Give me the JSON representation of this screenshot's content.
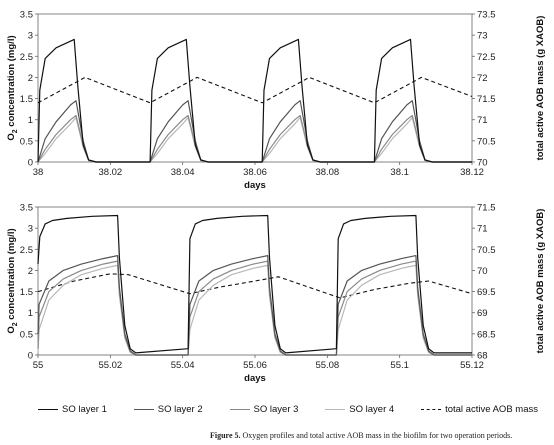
{
  "caption": {
    "label": "Figure 5.",
    "text": "Oxygen profiles and total active AOB mass in the biofilm for two operation periods."
  },
  "legend": [
    {
      "name": "SO layer 1",
      "color": "#111111",
      "dash": ""
    },
    {
      "name": "SO layer 2",
      "color": "#555555",
      "dash": ""
    },
    {
      "name": "SO layer 3",
      "color": "#8a8a8a",
      "dash": ""
    },
    {
      "name": "SO layer 4",
      "color": "#b8b8b8",
      "dash": ""
    },
    {
      "name": "total active AOB mass",
      "color": "#111111",
      "dash": "4,3"
    }
  ],
  "chart_data": [
    {
      "type": "line",
      "xlabel": "days",
      "ylabel": "O2 concentration (mg/l)",
      "y2label": "total active AOB mass (g XAOB)",
      "xlim": [
        38,
        38.12
      ],
      "ylim": [
        0,
        3.5
      ],
      "y2lim": [
        70,
        73.5
      ],
      "xticks": [
        "38",
        "38.02",
        "38.04",
        "38.06",
        "38.08",
        "38.1",
        "38.12"
      ],
      "yticks": [
        "0",
        "0.5",
        "1",
        "1.5",
        "2",
        "2.5",
        "3",
        "3.5"
      ],
      "y2ticks": [
        "70",
        "70.5",
        "71",
        "71.5",
        "72",
        "72.5",
        "73",
        "73.5"
      ],
      "grid": false,
      "series": [
        {
          "name": "SO layer 1",
          "axis": "left",
          "x": [
            38,
            38.0005,
            38.002,
            38.005,
            38.01,
            38.011,
            38.0125,
            38.014,
            38.016,
            38.031,
            38.0315,
            38.033,
            38.036,
            38.041,
            38.042,
            38.0435,
            38.045,
            38.047,
            38.062,
            38.0625,
            38.064,
            38.067,
            38.072,
            38.073,
            38.0745,
            38.076,
            38.078,
            38.093,
            38.0935,
            38.095,
            38.098,
            38.103,
            38.104,
            38.1055,
            38.107,
            38.109,
            38.12
          ],
          "y": [
            0.0,
            1.7,
            2.45,
            2.7,
            2.9,
            1.8,
            0.4,
            0.05,
            0.0,
            0.0,
            1.7,
            2.45,
            2.7,
            2.9,
            1.8,
            0.4,
            0.05,
            0.0,
            0.0,
            1.7,
            2.45,
            2.7,
            2.9,
            1.8,
            0.4,
            0.05,
            0.0,
            0.0,
            1.7,
            2.45,
            2.7,
            2.9,
            1.8,
            0.4,
            0.05,
            0.0,
            0.0
          ]
        },
        {
          "name": "SO layer 2",
          "axis": "left",
          "x": [
            38,
            38.002,
            38.005,
            38.009,
            38.0105,
            38.0125,
            38.014,
            38.016,
            38.031,
            38.033,
            38.036,
            38.04,
            38.0415,
            38.0435,
            38.045,
            38.047,
            38.062,
            38.064,
            38.067,
            38.071,
            38.0725,
            38.0745,
            38.076,
            38.078,
            38.093,
            38.095,
            38.098,
            38.102,
            38.1035,
            38.1055,
            38.107,
            38.109,
            38.12
          ],
          "y": [
            0.0,
            0.55,
            0.95,
            1.35,
            1.45,
            0.5,
            0.05,
            0.0,
            0.0,
            0.55,
            0.95,
            1.35,
            1.45,
            0.5,
            0.05,
            0.0,
            0.0,
            0.55,
            0.95,
            1.35,
            1.45,
            0.5,
            0.05,
            0.0,
            0.0,
            0.55,
            0.95,
            1.35,
            1.45,
            0.5,
            0.05,
            0.0,
            0.0
          ]
        },
        {
          "name": "SO layer 3",
          "axis": "left",
          "x": [
            38,
            38.002,
            38.005,
            38.009,
            38.0105,
            38.0125,
            38.014,
            38.016,
            38.031,
            38.033,
            38.036,
            38.04,
            38.0415,
            38.0435,
            38.045,
            38.047,
            38.062,
            38.064,
            38.067,
            38.071,
            38.0725,
            38.0745,
            38.076,
            38.078,
            38.093,
            38.095,
            38.098,
            38.102,
            38.1035,
            38.1055,
            38.107,
            38.109,
            38.12
          ],
          "y": [
            0.0,
            0.3,
            0.65,
            1.0,
            1.1,
            0.4,
            0.04,
            0.0,
            0.0,
            0.3,
            0.65,
            1.0,
            1.1,
            0.4,
            0.04,
            0.0,
            0.0,
            0.3,
            0.65,
            1.0,
            1.1,
            0.4,
            0.04,
            0.0,
            0.0,
            0.3,
            0.65,
            1.0,
            1.1,
            0.4,
            0.04,
            0.0,
            0.0
          ]
        },
        {
          "name": "SO layer 4",
          "axis": "left",
          "x": [
            38,
            38.002,
            38.005,
            38.009,
            38.0105,
            38.0125,
            38.014,
            38.016,
            38.031,
            38.033,
            38.036,
            38.04,
            38.0415,
            38.0435,
            38.045,
            38.047,
            38.062,
            38.064,
            38.067,
            38.071,
            38.0725,
            38.0745,
            38.076,
            38.078,
            38.093,
            38.095,
            38.098,
            38.102,
            38.1035,
            38.1055,
            38.107,
            38.109,
            38.12
          ],
          "y": [
            0.0,
            0.2,
            0.55,
            0.9,
            1.05,
            0.35,
            0.03,
            0.0,
            0.0,
            0.2,
            0.55,
            0.9,
            1.05,
            0.35,
            0.03,
            0.0,
            0.0,
            0.2,
            0.55,
            0.9,
            1.05,
            0.35,
            0.03,
            0.0,
            0.0,
            0.2,
            0.55,
            0.9,
            1.05,
            0.35,
            0.03,
            0.0,
            0.0
          ]
        },
        {
          "name": "total active AOB mass",
          "axis": "right",
          "x": [
            38,
            38.013,
            38.031,
            38.044,
            38.062,
            38.075,
            38.093,
            38.106,
            38.12
          ],
          "y": [
            71.4,
            72.0,
            71.4,
            72.0,
            71.4,
            72.0,
            71.4,
            72.0,
            71.55
          ]
        }
      ]
    },
    {
      "type": "line",
      "xlabel": "days",
      "ylabel": "O2 concentration (mg/l)",
      "y2label": "total active AOB mass (g XAOB)",
      "xlim": [
        55,
        55.12
      ],
      "ylim": [
        0,
        3.5
      ],
      "y2lim": [
        68,
        71.5
      ],
      "xticks": [
        "55",
        "55.02",
        "55.04",
        "55.06",
        "55.08",
        "55.1",
        "55.12"
      ],
      "yticks": [
        "0",
        "0.5",
        "1",
        "1.5",
        "2",
        "2.5",
        "3",
        "3.5"
      ],
      "y2ticks": [
        "68",
        "68.5",
        "69",
        "69.5",
        "70",
        "70.5",
        "71",
        "71.5"
      ],
      "grid": false,
      "series": [
        {
          "name": "SO layer 1",
          "axis": "left",
          "x": [
            55,
            55.0005,
            55.002,
            55.004,
            55.008,
            55.015,
            55.022,
            55.0225,
            55.024,
            55.0255,
            55.027,
            55.0415,
            55.042,
            55.0435,
            55.0455,
            55.0495,
            55.0565,
            55.0635,
            55.064,
            55.0655,
            55.067,
            55.0685,
            55.0825,
            55.083,
            55.0845,
            55.0865,
            55.0905,
            55.0975,
            55.1045,
            55.105,
            55.1065,
            55.108,
            55.1095,
            55.12
          ],
          "y": [
            2.15,
            2.8,
            3.1,
            3.18,
            3.23,
            3.28,
            3.3,
            2.3,
            0.7,
            0.15,
            0.05,
            0.15,
            2.75,
            3.1,
            3.18,
            3.23,
            3.28,
            3.3,
            2.3,
            0.7,
            0.15,
            0.05,
            0.15,
            2.75,
            3.1,
            3.18,
            3.23,
            3.28,
            3.3,
            2.3,
            0.7,
            0.15,
            0.05,
            0.05
          ]
        },
        {
          "name": "SO layer 2",
          "axis": "left",
          "x": [
            55,
            55.0003,
            55.003,
            55.007,
            55.012,
            55.018,
            55.022,
            55.0225,
            55.024,
            55.0255,
            55.027,
            55.0415,
            55.042,
            55.0445,
            55.0485,
            55.0535,
            55.0595,
            55.0635,
            55.064,
            55.0655,
            55.067,
            55.0685,
            55.0825,
            55.083,
            55.0855,
            55.0895,
            55.0945,
            55.1005,
            55.1045,
            55.105,
            55.1065,
            55.108,
            55.1095,
            55.12
          ],
          "y": [
            0.5,
            1.2,
            1.75,
            2.0,
            2.15,
            2.28,
            2.35,
            1.6,
            0.5,
            0.1,
            0.0,
            0.0,
            1.2,
            1.75,
            2.0,
            2.15,
            2.28,
            2.35,
            1.6,
            0.5,
            0.1,
            0.0,
            0.0,
            1.2,
            1.75,
            2.0,
            2.15,
            2.28,
            2.35,
            1.6,
            0.5,
            0.1,
            0.0,
            0.0
          ]
        },
        {
          "name": "SO layer 3",
          "axis": "left",
          "x": [
            55,
            55.0003,
            55.003,
            55.007,
            55.012,
            55.018,
            55.022,
            55.0225,
            55.024,
            55.0255,
            55.027,
            55.0415,
            55.042,
            55.0445,
            55.0485,
            55.0535,
            55.0595,
            55.0635,
            55.064,
            55.0655,
            55.067,
            55.0685,
            55.0825,
            55.083,
            55.0855,
            55.0895,
            55.0945,
            55.1005,
            55.1045,
            55.105,
            55.1065,
            55.108,
            55.1095,
            55.12
          ],
          "y": [
            0.15,
            0.9,
            1.5,
            1.8,
            2.0,
            2.15,
            2.22,
            1.5,
            0.45,
            0.08,
            0.0,
            0.0,
            0.9,
            1.5,
            1.8,
            2.0,
            2.15,
            2.22,
            1.5,
            0.45,
            0.08,
            0.0,
            0.0,
            0.9,
            1.5,
            1.8,
            2.0,
            2.15,
            2.22,
            1.5,
            0.45,
            0.08,
            0.0,
            0.0
          ]
        },
        {
          "name": "SO layer 4",
          "axis": "left",
          "x": [
            55,
            55.0003,
            55.003,
            55.007,
            55.012,
            55.018,
            55.022,
            55.0225,
            55.024,
            55.0255,
            55.027,
            55.0415,
            55.042,
            55.0445,
            55.0485,
            55.0535,
            55.0595,
            55.0635,
            55.064,
            55.0655,
            55.067,
            55.0685,
            55.0825,
            55.083,
            55.0855,
            55.0895,
            55.0945,
            55.1005,
            55.1045,
            55.105,
            55.1065,
            55.108,
            55.1095,
            55.12
          ],
          "y": [
            0.05,
            0.6,
            1.3,
            1.65,
            1.9,
            2.05,
            2.12,
            1.4,
            0.4,
            0.06,
            0.0,
            0.0,
            0.6,
            1.3,
            1.65,
            1.9,
            2.05,
            2.12,
            1.4,
            0.4,
            0.06,
            0.0,
            0.0,
            0.6,
            1.3,
            1.65,
            1.9,
            2.05,
            2.12,
            1.4,
            0.4,
            0.06,
            0.0,
            0.0
          ]
        },
        {
          "name": "total active AOB mass",
          "axis": "right",
          "x": [
            55,
            55.01,
            55.02,
            55.025,
            55.042,
            55.05,
            55.06,
            55.0665,
            55.0835,
            55.093,
            55.103,
            55.108,
            55.12
          ],
          "y": [
            69.5,
            69.75,
            69.92,
            69.9,
            69.45,
            69.6,
            69.75,
            69.85,
            69.35,
            69.55,
            69.7,
            69.75,
            69.45
          ]
        }
      ]
    }
  ]
}
